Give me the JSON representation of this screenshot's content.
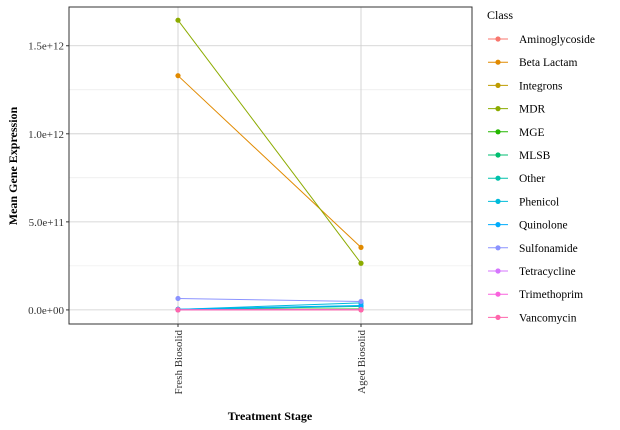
{
  "chart_data": {
    "type": "line",
    "xlabel": "Treatment Stage",
    "ylabel": "Mean Gene Expression",
    "x": [
      "Fresh Biosolid",
      "Aged Biosolid"
    ],
    "ylim": [
      -80000000000.0,
      1720000000000.0
    ],
    "yticks": [
      0,
      500000000000,
      1000000000000,
      1500000000000
    ],
    "ytick_labels": [
      "0.0e+00",
      "5.0e+11",
      "1.0e+12",
      "1.5e+12"
    ],
    "grid": true,
    "legend": {
      "title": "Class",
      "placement": "right"
    },
    "series": [
      {
        "name": "Aminoglycoside",
        "color": "#F8766D",
        "values": [
          3000000000,
          4000000000
        ]
      },
      {
        "name": "Beta Lactam",
        "color": "#E18A00",
        "values": [
          1330000000000,
          355000000000
        ]
      },
      {
        "name": "Integrons",
        "color": "#BE9C00",
        "values": [
          1000000000,
          1000000000
        ]
      },
      {
        "name": "MDR",
        "color": "#8CAB00",
        "values": [
          1645000000000,
          265000000000
        ]
      },
      {
        "name": "MGE",
        "color": "#24B700",
        "values": [
          2000000000,
          5000000000
        ]
      },
      {
        "name": "MLSB",
        "color": "#00BE70",
        "values": [
          1000000000,
          3000000000
        ]
      },
      {
        "name": "Other",
        "color": "#00C1AB",
        "values": [
          1000000000,
          20000000000
        ]
      },
      {
        "name": "Phenicol",
        "color": "#00BBDA",
        "values": [
          3000000000,
          40000000000
        ]
      },
      {
        "name": "Quinolone",
        "color": "#00ACFC",
        "values": [
          4000000000,
          25000000000
        ]
      },
      {
        "name": "Sulfonamide",
        "color": "#8B93FF",
        "values": [
          65000000000,
          48000000000
        ]
      },
      {
        "name": "Tetracycline",
        "color": "#D575FE",
        "values": [
          1000000000,
          2000000000
        ]
      },
      {
        "name": "Trimethoprim",
        "color": "#F962DD",
        "values": [
          500000000,
          1000000000
        ]
      },
      {
        "name": "Vancomycin",
        "color": "#FF65AC",
        "values": [
          200000000,
          500000000
        ]
      }
    ]
  }
}
